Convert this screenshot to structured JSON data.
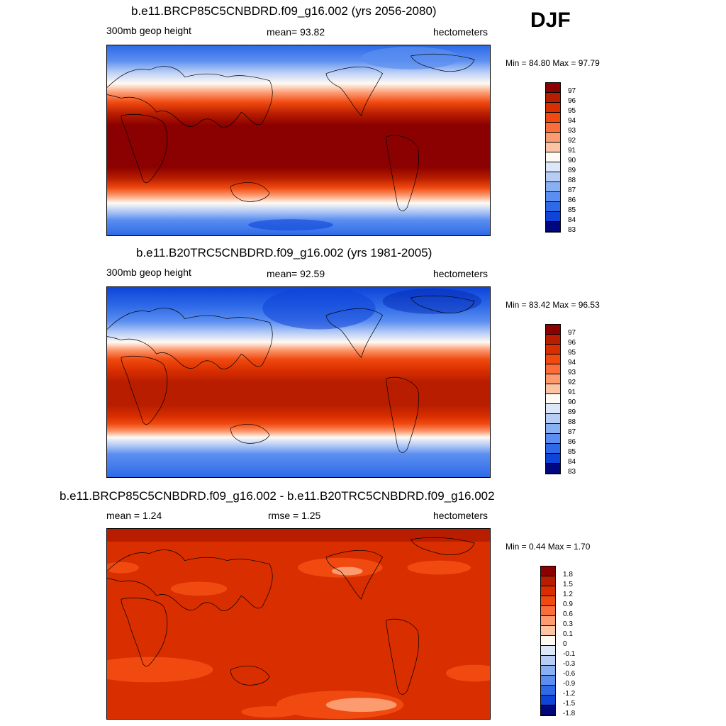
{
  "season": "DJF",
  "panels": [
    {
      "title": "b.e11.BRCP85C5CNBDRD.f09_g16.002 (yrs 2056-2080)",
      "left_label": "300mb geop height",
      "center_label": "mean=  93.82",
      "right_label": "hectometers",
      "minmax": "Min =  84.80 Max =  97.79",
      "colorbar_labels": [
        "97",
        "96",
        "95",
        "94",
        "93",
        "92",
        "91",
        "90",
        "89",
        "88",
        "87",
        "86",
        "85",
        "84",
        "83"
      ]
    },
    {
      "title": "b.e11.B20TRC5CNBDRD.f09_g16.002 (yrs 1981-2005)",
      "left_label": "300mb geop height",
      "center_label": "mean=  92.59",
      "right_label": "hectometers",
      "minmax": "Min =  83.42 Max =  96.53",
      "colorbar_labels": [
        "97",
        "96",
        "95",
        "94",
        "93",
        "92",
        "91",
        "90",
        "89",
        "88",
        "87",
        "86",
        "85",
        "84",
        "83"
      ]
    },
    {
      "title": "b.e11.BRCP85C5CNBDRD.f09_g16.002 - b.e11.B20TRC5CNBDRD.f09_g16.002",
      "left_label": "mean =   1.24",
      "center_label": "rmse =   1.25",
      "right_label": "hectometers",
      "minmax": "Min =   0.44 Max =   1.70",
      "colorbar_labels": [
        "1.8",
        "1.5",
        "1.2",
        "0.9",
        "0.6",
        "0.3",
        "0.1",
        "0",
        "-0.1",
        "-0.3",
        "-0.6",
        "-0.9",
        "-1.2",
        "-1.5",
        "-1.8"
      ]
    }
  ],
  "colors": {
    "scale": [
      "#8b0000",
      "#b81d00",
      "#d82e00",
      "#f04a10",
      "#fb6e3c",
      "#fc9a70",
      "#fdc4a3",
      "#fde8d8",
      "#fffaf3",
      "#dce8fa",
      "#b7cdf6",
      "#8ab0f4",
      "#5b8ef0",
      "#2e6ae8",
      "#0e44d8",
      "#0025b0",
      "#000880"
    ],
    "land": "#000000"
  }
}
